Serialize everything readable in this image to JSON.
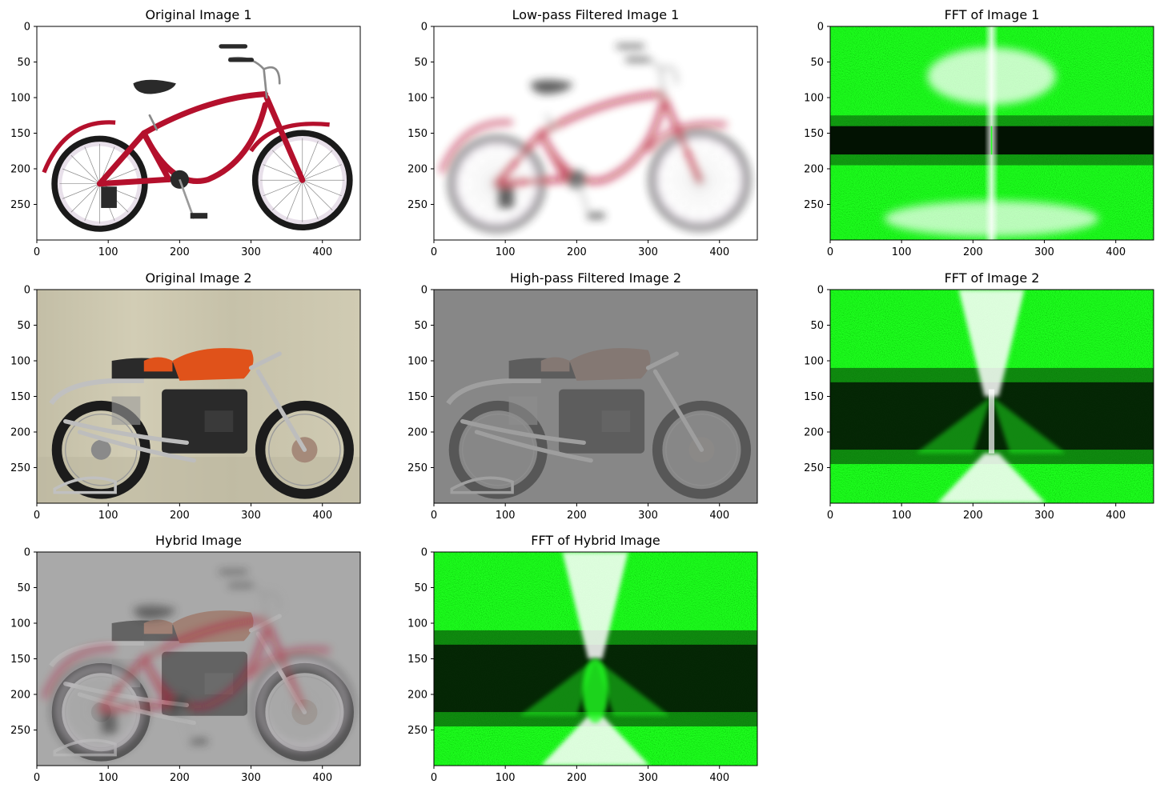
{
  "chart_data": [
    {
      "type": "image",
      "title": "Original Image 1",
      "content": "bicycle",
      "xlim": [
        0,
        453
      ],
      "ylim": [
        300,
        0
      ],
      "xticks": [
        0,
        100,
        200,
        300,
        400
      ],
      "yticks": [
        0,
        50,
        100,
        150,
        200,
        250
      ],
      "colors": {
        "background": "#ffffff",
        "frame": "#b4102c",
        "tire": "#1a1a1a",
        "rim": "#ece6ee",
        "seat": "#2a2a2a"
      }
    },
    {
      "type": "image",
      "title": "Low-pass Filtered Image 1",
      "content": "blurred bicycle",
      "xlim": [
        0,
        453
      ],
      "ylim": [
        300,
        0
      ],
      "xticks": [
        0,
        100,
        200,
        300,
        400
      ],
      "yticks": [
        0,
        50,
        100,
        150,
        200,
        250
      ],
      "colors": {
        "background": "#ffffff",
        "frame": "#c63a57",
        "tire": "#6a6a6a"
      }
    },
    {
      "type": "image",
      "title": "FFT of Image 1",
      "content": "frequency spectrum",
      "xlim": [
        0,
        453
      ],
      "ylim": [
        300,
        0
      ],
      "xticks": [
        0,
        100,
        200,
        300,
        400
      ],
      "yticks": [
        0,
        50,
        100,
        150,
        200,
        250
      ],
      "colors": {
        "bright": "#ffffff",
        "green": "#22ff22",
        "dark": "#021202"
      }
    },
    {
      "type": "image",
      "title": "Original Image 2",
      "content": "motorcycle",
      "xlim": [
        0,
        453
      ],
      "ylim": [
        300,
        0
      ],
      "xticks": [
        0,
        100,
        200,
        300,
        400
      ],
      "yticks": [
        0,
        50,
        100,
        150,
        200,
        250
      ],
      "colors": {
        "background": "#c9c4ab",
        "tank": "#e0521a",
        "engine": "#2a2a2a",
        "chrome": "#b8b8b8",
        "tire": "#1c1c1c"
      }
    },
    {
      "type": "image",
      "title": "High-pass Filtered Image 2",
      "content": "edge-enhanced motorcycle",
      "xlim": [
        0,
        453
      ],
      "ylim": [
        300,
        0
      ],
      "xticks": [
        0,
        100,
        200,
        300,
        400
      ],
      "yticks": [
        0,
        50,
        100,
        150,
        200,
        250
      ],
      "colors": {
        "background": "#878787",
        "tank": "#8a6a52",
        "engine": "#3a3a3a",
        "edge": "#c8c8c8"
      }
    },
    {
      "type": "image",
      "title": "FFT of Image 2",
      "content": "frequency spectrum",
      "xlim": [
        0,
        453
      ],
      "ylim": [
        300,
        0
      ],
      "xticks": [
        0,
        100,
        200,
        300,
        400
      ],
      "yticks": [
        0,
        50,
        100,
        150,
        200,
        250
      ],
      "colors": {
        "bright": "#ffffff",
        "green": "#22ff22",
        "dark": "#031503"
      }
    },
    {
      "type": "image",
      "title": "Hybrid Image",
      "content": "motorcycle overlaid with blurred bicycle",
      "xlim": [
        0,
        453
      ],
      "ylim": [
        300,
        0
      ],
      "xticks": [
        0,
        100,
        200,
        300,
        400
      ],
      "yticks": [
        0,
        50,
        100,
        150,
        200,
        250
      ],
      "colors": {
        "background": "#a9a9a9",
        "frame": "#9a4a5e",
        "tank": "#a0503a",
        "engine": "#3c3c3c"
      }
    },
    {
      "type": "image",
      "title": "FFT of Hybrid Image",
      "content": "frequency spectrum",
      "xlim": [
        0,
        453
      ],
      "ylim": [
        300,
        0
      ],
      "xticks": [
        0,
        100,
        200,
        300,
        400
      ],
      "yticks": [
        0,
        50,
        100,
        150,
        200,
        250
      ],
      "colors": {
        "bright": "#ffffff",
        "green": "#22ff22",
        "dark": "#031503"
      }
    }
  ]
}
